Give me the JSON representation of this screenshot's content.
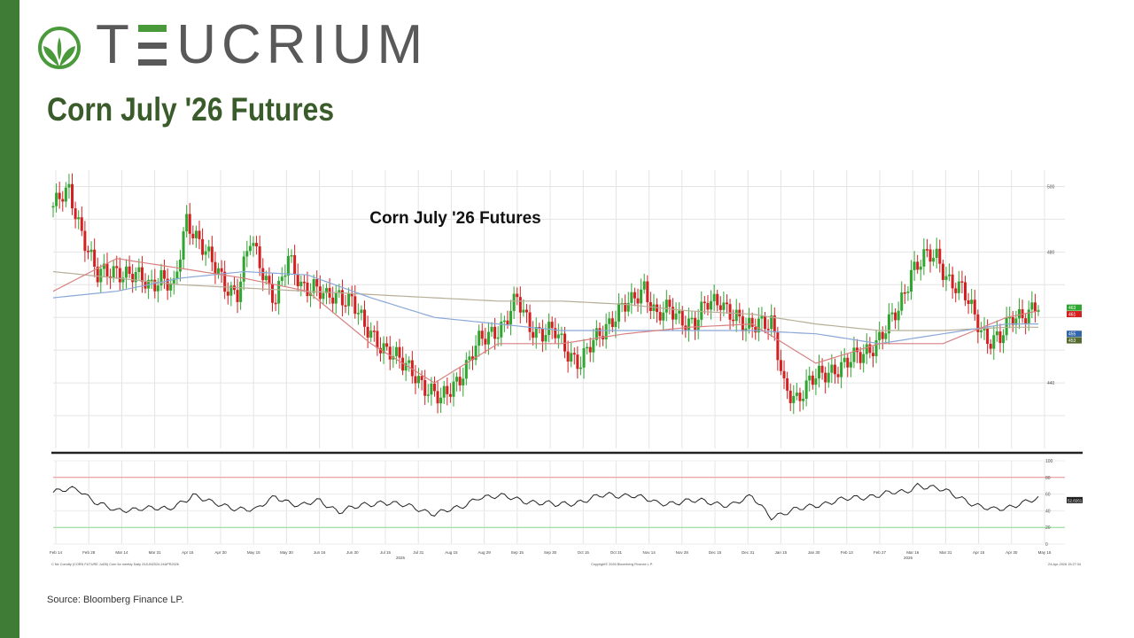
{
  "brand": {
    "name_prefix": "T",
    "name_e": "E",
    "name_rest": "UCRIUM",
    "logo_icon": "leaf-circle-icon",
    "color": "#595959",
    "accent": "#4a9a3c"
  },
  "page": {
    "title": "Corn July '26 Futures",
    "source": "Source: Bloomberg Finance LP."
  },
  "colors": {
    "sidebar": "#3f7d36",
    "title": "#3a5c2a",
    "up": "#2fa62f",
    "down": "#d42020",
    "ma_red": "#d88080",
    "ma_blue": "#8aa8d8",
    "ma_tan": "#b8ae98"
  },
  "chart_data": {
    "type": "candlestick",
    "title": "Corn July '26 Futures",
    "y_axis_labels": [
      "500",
      "480",
      "440"
    ],
    "ylim": [
      420,
      505
    ],
    "x_tick_labels": [
      "Feb 14",
      "Feb 28",
      "Mar 14",
      "Mar 31",
      "Apr 15",
      "Apr 30",
      "May 15",
      "May 30",
      "Jun 16",
      "Jun 30",
      "Jul 15",
      "Jul 31",
      "Aug 15",
      "Aug 29",
      "Sep 15",
      "Sep 30",
      "Oct 15",
      "Oct 31",
      "Nov 14",
      "Nov 28",
      "Dec 15",
      "Dec 31",
      "Jan 15",
      "Jan 30",
      "Feb 13",
      "Feb 27",
      "Mar 16",
      "Mar 31",
      "Apr 15",
      "Apr 30",
      "May 15"
    ],
    "year_labels": [
      "2025",
      "2026"
    ],
    "right_tags": [
      "463",
      "461",
      "455",
      "453"
    ],
    "footer_left": "C Ne Comdty (CORN FUTURE     Jul26) Corn for weekly Daily 24JUN2024-24APR2026",
    "footer_center": "Copyright© 2026 Bloomberg Finance L.P.",
    "footer_right": "24-Apr-2026 15:27:34",
    "price_anchors": [
      [
        0,
        494
      ],
      [
        5,
        498
      ],
      [
        10,
        484
      ],
      [
        14,
        472
      ],
      [
        20,
        475
      ],
      [
        26,
        472
      ],
      [
        30,
        470
      ],
      [
        34,
        473
      ],
      [
        38,
        468
      ],
      [
        42,
        490
      ],
      [
        46,
        484
      ],
      [
        50,
        476
      ],
      [
        54,
        470
      ],
      [
        58,
        468
      ],
      [
        62,
        483
      ],
      [
        66,
        474
      ],
      [
        70,
        466
      ],
      [
        74,
        477
      ],
      [
        78,
        470
      ],
      [
        82,
        470
      ],
      [
        86,
        465
      ],
      [
        90,
        467
      ],
      [
        94,
        466
      ],
      [
        98,
        456
      ],
      [
        102,
        453
      ],
      [
        106,
        450
      ],
      [
        110,
        445
      ],
      [
        114,
        443
      ],
      [
        118,
        438
      ],
      [
        122,
        434
      ],
      [
        126,
        440
      ],
      [
        130,
        445
      ],
      [
        134,
        452
      ],
      [
        138,
        456
      ],
      [
        142,
        458
      ],
      [
        146,
        465
      ],
      [
        150,
        458
      ],
      [
        154,
        455
      ],
      [
        158,
        455
      ],
      [
        162,
        450
      ],
      [
        166,
        446
      ],
      [
        170,
        452
      ],
      [
        174,
        458
      ],
      [
        178,
        462
      ],
      [
        182,
        464
      ],
      [
        186,
        470
      ],
      [
        190,
        460
      ],
      [
        194,
        462
      ],
      [
        198,
        460
      ],
      [
        202,
        458
      ],
      [
        206,
        464
      ],
      [
        210,
        466
      ],
      [
        214,
        460
      ],
      [
        218,
        456
      ],
      [
        222,
        460
      ],
      [
        226,
        458
      ],
      [
        230,
        438
      ],
      [
        234,
        436
      ],
      [
        238,
        440
      ],
      [
        242,
        442
      ],
      [
        246,
        445
      ],
      [
        250,
        446
      ],
      [
        254,
        448
      ],
      [
        258,
        452
      ],
      [
        262,
        456
      ],
      [
        266,
        462
      ],
      [
        270,
        475
      ],
      [
        274,
        478
      ],
      [
        278,
        478
      ],
      [
        282,
        472
      ],
      [
        286,
        468
      ],
      [
        290,
        460
      ],
      [
        294,
        454
      ],
      [
        298,
        453
      ],
      [
        302,
        460
      ],
      [
        306,
        462
      ],
      [
        310,
        463
      ]
    ],
    "ma_red": [
      [
        0,
        468
      ],
      [
        20,
        478
      ],
      [
        40,
        475
      ],
      [
        60,
        472
      ],
      [
        80,
        468
      ],
      [
        100,
        452
      ],
      [
        120,
        440
      ],
      [
        140,
        452
      ],
      [
        160,
        452
      ],
      [
        180,
        455
      ],
      [
        200,
        457
      ],
      [
        220,
        458
      ],
      [
        240,
        446
      ],
      [
        260,
        452
      ],
      [
        280,
        452
      ],
      [
        300,
        460
      ],
      [
        310,
        462
      ]
    ],
    "ma_blue": [
      [
        0,
        466
      ],
      [
        20,
        468
      ],
      [
        40,
        472
      ],
      [
        60,
        474
      ],
      [
        80,
        473
      ],
      [
        100,
        466
      ],
      [
        120,
        460
      ],
      [
        140,
        458
      ],
      [
        160,
        456
      ],
      [
        180,
        456
      ],
      [
        200,
        456
      ],
      [
        220,
        456
      ],
      [
        240,
        455
      ],
      [
        260,
        452
      ],
      [
        280,
        455
      ],
      [
        300,
        458
      ],
      [
        310,
        458
      ]
    ],
    "ma_tan": [
      [
        0,
        474
      ],
      [
        20,
        472
      ],
      [
        40,
        470
      ],
      [
        60,
        469
      ],
      [
        80,
        468
      ],
      [
        100,
        467
      ],
      [
        120,
        466
      ],
      [
        140,
        465
      ],
      [
        160,
        465
      ],
      [
        180,
        464
      ],
      [
        200,
        462
      ],
      [
        220,
        461
      ],
      [
        240,
        458
      ],
      [
        260,
        456
      ],
      [
        280,
        456
      ],
      [
        300,
        457
      ],
      [
        310,
        457
      ]
    ],
    "indicator": {
      "y_labels": [
        "100",
        "80",
        "60",
        "40",
        "20",
        "0"
      ],
      "overbought": 80,
      "oversold": 20,
      "last_value_label": "52.8261",
      "anchors": [
        [
          0,
          62
        ],
        [
          8,
          66
        ],
        [
          14,
          50
        ],
        [
          20,
          38
        ],
        [
          28,
          45
        ],
        [
          36,
          40
        ],
        [
          44,
          60
        ],
        [
          50,
          48
        ],
        [
          58,
          44
        ],
        [
          64,
          40
        ],
        [
          70,
          58
        ],
        [
          78,
          45
        ],
        [
          84,
          52
        ],
        [
          90,
          40
        ],
        [
          96,
          44
        ],
        [
          104,
          52
        ],
        [
          112,
          44
        ],
        [
          120,
          38
        ],
        [
          128,
          42
        ],
        [
          134,
          58
        ],
        [
          142,
          56
        ],
        [
          150,
          52
        ],
        [
          158,
          46
        ],
        [
          166,
          52
        ],
        [
          174,
          58
        ],
        [
          182,
          60
        ],
        [
          190,
          48
        ],
        [
          198,
          52
        ],
        [
          206,
          50
        ],
        [
          214,
          48
        ],
        [
          220,
          56
        ],
        [
          226,
          34
        ],
        [
          232,
          38
        ],
        [
          240,
          48
        ],
        [
          248,
          52
        ],
        [
          256,
          58
        ],
        [
          262,
          60
        ],
        [
          268,
          62
        ],
        [
          272,
          72
        ],
        [
          278,
          66
        ],
        [
          286,
          56
        ],
        [
          292,
          44
        ],
        [
          296,
          40
        ],
        [
          300,
          44
        ],
        [
          304,
          50
        ],
        [
          308,
          52
        ],
        [
          310,
          53
        ]
      ]
    }
  }
}
